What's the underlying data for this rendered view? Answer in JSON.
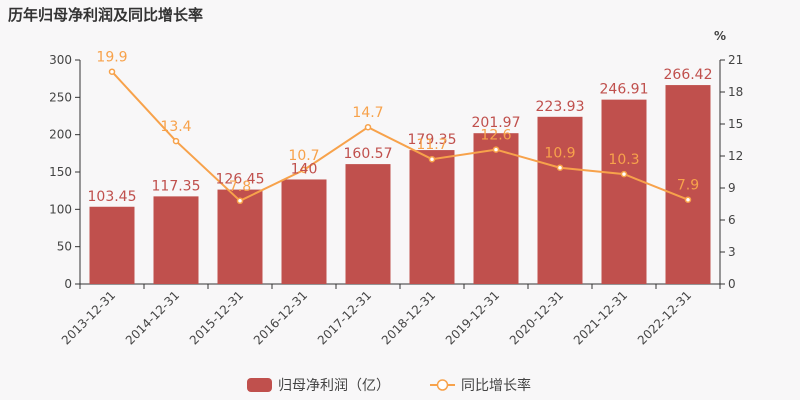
{
  "title": "历年归母净利润及同比增长率",
  "chart_data": {
    "type": "bar",
    "categories": [
      "2013-12-31",
      "2014-12-31",
      "2015-12-31",
      "2016-12-31",
      "2017-12-31",
      "2018-12-31",
      "2019-12-31",
      "2020-12-31",
      "2021-12-31",
      "2022-12-31"
    ],
    "series": [
      {
        "name": "归母净利润（亿）",
        "type": "bar",
        "axis": "left",
        "color": "#c0504d",
        "values": [
          103.45,
          117.35,
          126.45,
          140,
          160.57,
          179.35,
          201.97,
          223.93,
          246.91,
          266.42
        ],
        "labels": [
          "103.45",
          "117.35",
          "126.45",
          "140",
          "160.57",
          "179.35",
          "201.97",
          "223.93",
          "246.91",
          "266.42"
        ]
      },
      {
        "name": "同比增长率",
        "type": "line",
        "axis": "right",
        "color": "#f7a24b",
        "values": [
          19.9,
          13.4,
          7.8,
          10.7,
          14.7,
          11.7,
          12.6,
          10.9,
          10.3,
          7.9
        ],
        "labels": [
          "19.9",
          "13.4",
          "7.8",
          "10.7",
          "14.7",
          "11.7",
          "12.6",
          "10.9",
          "10.3",
          "7.9"
        ]
      }
    ],
    "y_left": {
      "min": 0,
      "max": 300,
      "ticks": [
        0,
        50,
        100,
        150,
        200,
        250,
        300
      ]
    },
    "y_right": {
      "min": 0,
      "max": 21,
      "ticks": [
        0,
        3,
        6,
        9,
        12,
        15,
        18,
        21
      ],
      "unit": "%"
    },
    "grid": false,
    "legend_position": "bottom"
  }
}
